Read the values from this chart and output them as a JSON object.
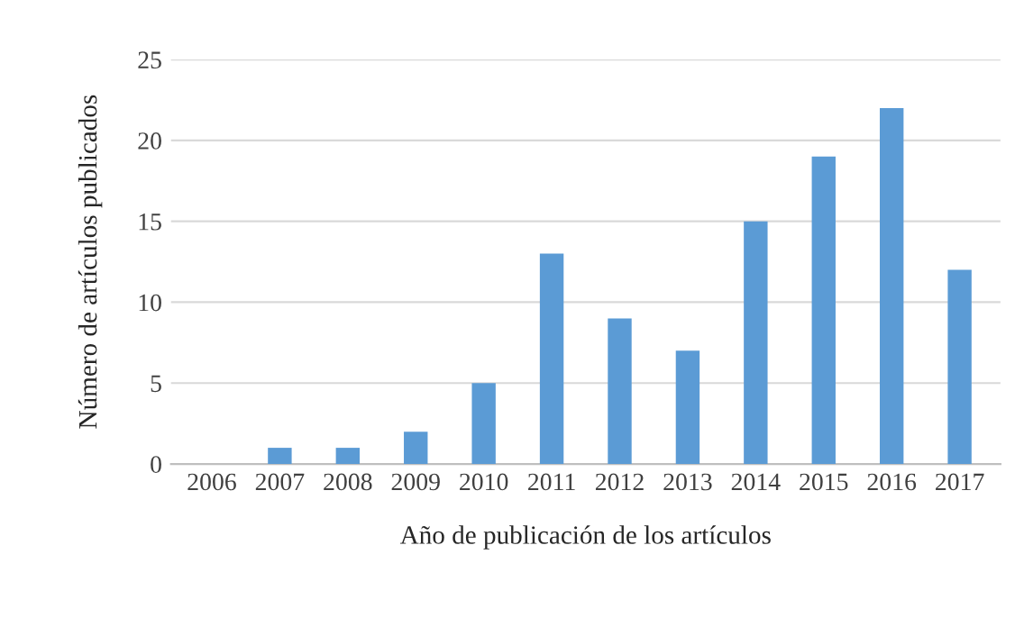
{
  "chart_data": {
    "type": "bar",
    "xlabel": "Año de publicación de los artículos",
    "ylabel": "Número de artículos publicados",
    "categories": [
      "2006",
      "2007",
      "2008",
      "2009",
      "2010",
      "2011",
      "2012",
      "2013",
      "2014",
      "2015",
      "2016",
      "2017"
    ],
    "values": [
      0,
      1,
      1,
      2,
      5,
      13,
      9,
      7,
      15,
      19,
      22,
      12
    ],
    "color": "#5b9bd5",
    "ylim": [
      0,
      25
    ],
    "yticks": [
      0,
      5,
      10,
      15,
      20,
      25
    ],
    "grid": "y",
    "legend": false
  }
}
